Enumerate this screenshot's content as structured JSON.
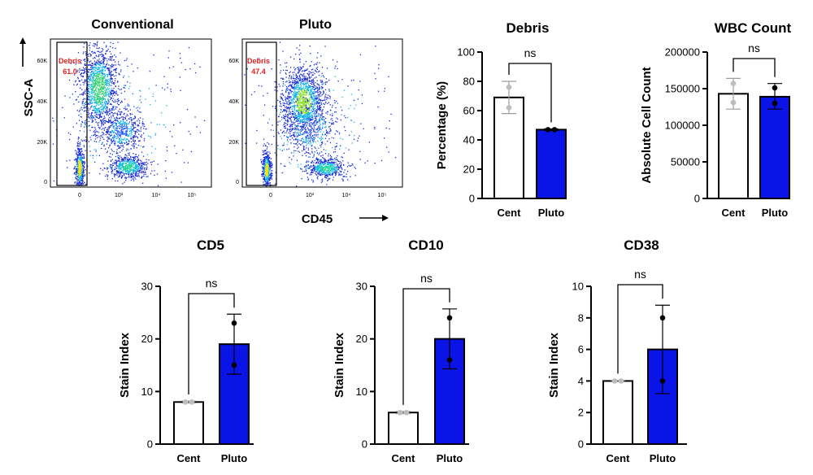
{
  "colors": {
    "pluto_bar": "#0a14e6",
    "cent_bar": "#ffffff",
    "gate_text": "#e02020",
    "cent_point": "#bdbdbd",
    "pluto_point": "#000000"
  },
  "flow": {
    "y_axis_label": "SSC-A",
    "x_axis_label": "CD45",
    "y_ticks": [
      "0",
      "20K",
      "40K",
      "60K"
    ],
    "x_ticks": [
      "0",
      "10³",
      "10⁴",
      "10⁵"
    ],
    "panels": [
      {
        "title": "Conventional",
        "gate_name": "Debris",
        "gate_value": "61.0"
      },
      {
        "title": "Pluto",
        "gate_name": "Debris",
        "gate_value": "47.4"
      }
    ]
  },
  "chart_data": [
    {
      "id": "debris",
      "type": "bar",
      "title": "Debris",
      "ylabel": "Percentage (%)",
      "ylim": [
        0,
        100
      ],
      "yticks": [
        0,
        20,
        40,
        60,
        80,
        100
      ],
      "categories": [
        "Cent",
        "Pluto"
      ],
      "values": [
        69,
        47
      ],
      "errors": [
        [
          58,
          80
        ],
        [
          46.5,
          47.5
        ]
      ],
      "points": [
        [
          62,
          76
        ],
        [
          47,
          47
        ]
      ],
      "comparison": "ns"
    },
    {
      "id": "wbc",
      "type": "bar",
      "title": "WBC Count",
      "ylabel": "Absolute Cell Count",
      "ylim": [
        0,
        200000
      ],
      "yticks": [
        0,
        50000,
        100000,
        150000,
        200000
      ],
      "categories": [
        "Cent",
        "Pluto"
      ],
      "values": [
        143000,
        139000
      ],
      "errors": [
        [
          122000,
          164000
        ],
        [
          122000,
          157000
        ]
      ],
      "points": [
        [
          131000,
          157000
        ],
        [
          130000,
          151000
        ]
      ],
      "comparison": "ns"
    },
    {
      "id": "cd5",
      "type": "bar",
      "title": "CD5",
      "ylabel": "Stain Index",
      "ylim": [
        0,
        30
      ],
      "yticks": [
        0,
        10,
        20,
        30
      ],
      "categories": [
        "Cent",
        "Pluto"
      ],
      "values": [
        8,
        19
      ],
      "errors": [
        [
          7.8,
          8.2
        ],
        [
          13.3,
          24.7
        ]
      ],
      "points": [
        [
          8,
          8
        ],
        [
          15,
          23
        ]
      ],
      "comparison": "ns"
    },
    {
      "id": "cd10",
      "type": "bar",
      "title": "CD10",
      "ylabel": "Stain Index",
      "ylim": [
        0,
        30
      ],
      "yticks": [
        0,
        10,
        20,
        30
      ],
      "categories": [
        "Cent",
        "Pluto"
      ],
      "values": [
        6,
        20
      ],
      "errors": [
        [
          5.8,
          6.2
        ],
        [
          14.3,
          25.7
        ]
      ],
      "points": [
        [
          6,
          6
        ],
        [
          16,
          24
        ]
      ],
      "comparison": "ns"
    },
    {
      "id": "cd38",
      "type": "bar",
      "title": "CD38",
      "ylabel": "Stain Index",
      "ylim": [
        0,
        10
      ],
      "yticks": [
        0,
        2,
        4,
        6,
        8,
        10
      ],
      "categories": [
        "Cent",
        "Pluto"
      ],
      "values": [
        4,
        6
      ],
      "errors": [
        [
          3.95,
          4.05
        ],
        [
          3.2,
          8.8
        ]
      ],
      "points": [
        [
          4,
          4
        ],
        [
          4,
          8
        ]
      ],
      "comparison": "ns"
    }
  ]
}
